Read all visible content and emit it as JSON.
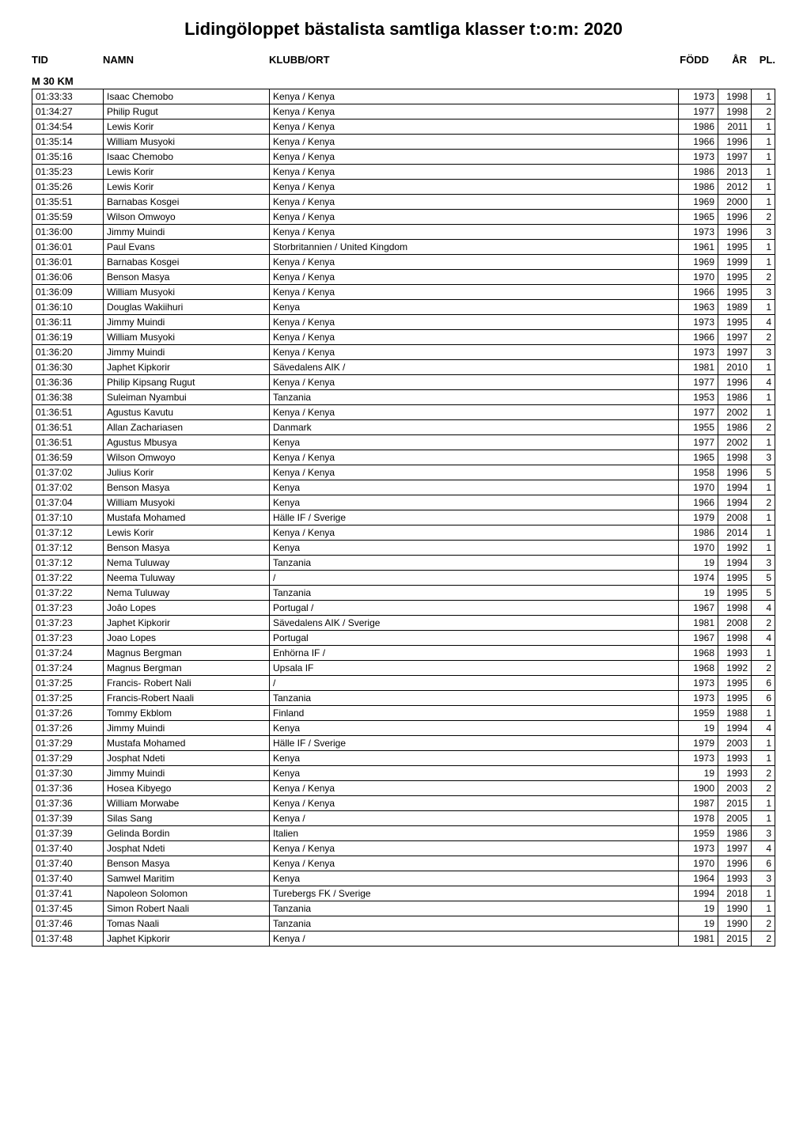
{
  "title": "Lidingöloppet bästalista samtliga klasser t:o:m: 2020",
  "columns": {
    "tid": "TID",
    "namn": "NAMN",
    "klubb": "KLUBB/ORT",
    "fodd": "FÖDD",
    "ar": "ÅR",
    "pl": "PL."
  },
  "section": "M 30 KM",
  "rows": [
    {
      "tid": "01:33:33",
      "namn": "Isaac Chemobo",
      "klubb": "Kenya / Kenya",
      "fodd": "1973",
      "ar": "1998",
      "pl": "1"
    },
    {
      "tid": "01:34:27",
      "namn": "Philip Rugut",
      "klubb": "Kenya / Kenya",
      "fodd": "1977",
      "ar": "1998",
      "pl": "2"
    },
    {
      "tid": "01:34:54",
      "namn": "Lewis Korir",
      "klubb": "Kenya / Kenya",
      "fodd": "1986",
      "ar": "2011",
      "pl": "1"
    },
    {
      "tid": "01:35:14",
      "namn": "William Musyoki",
      "klubb": "Kenya / Kenya",
      "fodd": "1966",
      "ar": "1996",
      "pl": "1"
    },
    {
      "tid": "01:35:16",
      "namn": "Isaac Chemobo",
      "klubb": "Kenya / Kenya",
      "fodd": "1973",
      "ar": "1997",
      "pl": "1"
    },
    {
      "tid": "01:35:23",
      "namn": "Lewis Korir",
      "klubb": "Kenya / Kenya",
      "fodd": "1986",
      "ar": "2013",
      "pl": "1"
    },
    {
      "tid": "01:35:26",
      "namn": "Lewis Korir",
      "klubb": "Kenya / Kenya",
      "fodd": "1986",
      "ar": "2012",
      "pl": "1"
    },
    {
      "tid": "01:35:51",
      "namn": "Barnabas Kosgei",
      "klubb": "Kenya / Kenya",
      "fodd": "1969",
      "ar": "2000",
      "pl": "1"
    },
    {
      "tid": "01:35:59",
      "namn": "Wilson Omwoyo",
      "klubb": "Kenya / Kenya",
      "fodd": "1965",
      "ar": "1996",
      "pl": "2"
    },
    {
      "tid": "01:36:00",
      "namn": "Jimmy Muindi",
      "klubb": "Kenya / Kenya",
      "fodd": "1973",
      "ar": "1996",
      "pl": "3"
    },
    {
      "tid": "01:36:01",
      "namn": "Paul Evans",
      "klubb": "Storbritannien / United Kingdom",
      "fodd": "1961",
      "ar": "1995",
      "pl": "1"
    },
    {
      "tid": "01:36:01",
      "namn": "Barnabas Kosgei",
      "klubb": "Kenya / Kenya",
      "fodd": "1969",
      "ar": "1999",
      "pl": "1"
    },
    {
      "tid": "01:36:06",
      "namn": "Benson Masya",
      "klubb": "Kenya / Kenya",
      "fodd": "1970",
      "ar": "1995",
      "pl": "2"
    },
    {
      "tid": "01:36:09",
      "namn": "William Musyoki",
      "klubb": "Kenya / Kenya",
      "fodd": "1966",
      "ar": "1995",
      "pl": "3"
    },
    {
      "tid": "01:36:10",
      "namn": "Douglas Wakiihuri",
      "klubb": "Kenya",
      "fodd": "1963",
      "ar": "1989",
      "pl": "1"
    },
    {
      "tid": "01:36:11",
      "namn": "Jimmy Muindi",
      "klubb": "Kenya / Kenya",
      "fodd": "1973",
      "ar": "1995",
      "pl": "4"
    },
    {
      "tid": "01:36:19",
      "namn": "William Musyoki",
      "klubb": "Kenya / Kenya",
      "fodd": "1966",
      "ar": "1997",
      "pl": "2"
    },
    {
      "tid": "01:36:20",
      "namn": "Jimmy Muindi",
      "klubb": "Kenya / Kenya",
      "fodd": "1973",
      "ar": "1997",
      "pl": "3"
    },
    {
      "tid": "01:36:30",
      "namn": "Japhet Kipkorir",
      "klubb": "Sävedalens AIK /",
      "fodd": "1981",
      "ar": "2010",
      "pl": "1"
    },
    {
      "tid": "01:36:36",
      "namn": "Philip Kipsang Rugut",
      "klubb": "Kenya / Kenya",
      "fodd": "1977",
      "ar": "1996",
      "pl": "4"
    },
    {
      "tid": "01:36:38",
      "namn": "Suleiman Nyambui",
      "klubb": "Tanzania",
      "fodd": "1953",
      "ar": "1986",
      "pl": "1"
    },
    {
      "tid": "01:36:51",
      "namn": "Agustus Kavutu",
      "klubb": "Kenya / Kenya",
      "fodd": "1977",
      "ar": "2002",
      "pl": "1"
    },
    {
      "tid": "01:36:51",
      "namn": "Allan Zachariasen",
      "klubb": "Danmark",
      "fodd": "1955",
      "ar": "1986",
      "pl": "2"
    },
    {
      "tid": "01:36:51",
      "namn": "Agustus Mbusya",
      "klubb": "Kenya",
      "fodd": "1977",
      "ar": "2002",
      "pl": "1"
    },
    {
      "tid": "01:36:59",
      "namn": "Wilson Omwoyo",
      "klubb": "Kenya / Kenya",
      "fodd": "1965",
      "ar": "1998",
      "pl": "3"
    },
    {
      "tid": "01:37:02",
      "namn": "Julius Korir",
      "klubb": "Kenya / Kenya",
      "fodd": "1958",
      "ar": "1996",
      "pl": "5"
    },
    {
      "tid": "01:37:02",
      "namn": "Benson Masya",
      "klubb": "Kenya",
      "fodd": "1970",
      "ar": "1994",
      "pl": "1"
    },
    {
      "tid": "01:37:04",
      "namn": "William Musyoki",
      "klubb": "Kenya",
      "fodd": "1966",
      "ar": "1994",
      "pl": "2"
    },
    {
      "tid": "01:37:10",
      "namn": "Mustafa Mohamed",
      "klubb": "Hälle IF / Sverige",
      "fodd": "1979",
      "ar": "2008",
      "pl": "1"
    },
    {
      "tid": "01:37:12",
      "namn": "Lewis Korir",
      "klubb": "Kenya / Kenya",
      "fodd": "1986",
      "ar": "2014",
      "pl": "1"
    },
    {
      "tid": "01:37:12",
      "namn": "Benson Masya",
      "klubb": "Kenya",
      "fodd": "1970",
      "ar": "1992",
      "pl": "1"
    },
    {
      "tid": "01:37:12",
      "namn": "Nema Tuluway",
      "klubb": "Tanzania",
      "fodd": "19",
      "ar": "1994",
      "pl": "3"
    },
    {
      "tid": "01:37:22",
      "namn": "Neema Tuluway",
      "klubb": "/",
      "fodd": "1974",
      "ar": "1995",
      "pl": "5"
    },
    {
      "tid": "01:37:22",
      "namn": "Nema Tuluway",
      "klubb": "Tanzania",
      "fodd": "19",
      "ar": "1995",
      "pl": "5"
    },
    {
      "tid": "01:37:23",
      "namn": "Joâo Lopes",
      "klubb": "Portugal /",
      "fodd": "1967",
      "ar": "1998",
      "pl": "4"
    },
    {
      "tid": "01:37:23",
      "namn": "Japhet Kipkorir",
      "klubb": "Sävedalens AIK / Sverige",
      "fodd": "1981",
      "ar": "2008",
      "pl": "2"
    },
    {
      "tid": "01:37:23",
      "namn": "Joao Lopes",
      "klubb": "Portugal",
      "fodd": "1967",
      "ar": "1998",
      "pl": "4"
    },
    {
      "tid": "01:37:24",
      "namn": "Magnus  Bergman",
      "klubb": "Enhörna IF /",
      "fodd": "1968",
      "ar": "1993",
      "pl": "1"
    },
    {
      "tid": "01:37:24",
      "namn": "Magnus Bergman",
      "klubb": "Upsala IF",
      "fodd": "1968",
      "ar": "1992",
      "pl": "2"
    },
    {
      "tid": "01:37:25",
      "namn": "Francis- Robert Nali",
      "klubb": "/",
      "fodd": "1973",
      "ar": "1995",
      "pl": "6"
    },
    {
      "tid": "01:37:25",
      "namn": "Francis-Robert Naali",
      "klubb": "Tanzania",
      "fodd": "1973",
      "ar": "1995",
      "pl": "6"
    },
    {
      "tid": "01:37:26",
      "namn": "Tommy Ekblom",
      "klubb": "Finland",
      "fodd": "1959",
      "ar": "1988",
      "pl": "1"
    },
    {
      "tid": "01:37:26",
      "namn": "Jimmy Muindi",
      "klubb": "Kenya",
      "fodd": "19",
      "ar": "1994",
      "pl": "4"
    },
    {
      "tid": "01:37:29",
      "namn": "Mustafa Mohamed",
      "klubb": "Hälle IF / Sverige",
      "fodd": "1979",
      "ar": "2003",
      "pl": "1"
    },
    {
      "tid": "01:37:29",
      "namn": "Josphat Ndeti",
      "klubb": "Kenya",
      "fodd": "1973",
      "ar": "1993",
      "pl": "1"
    },
    {
      "tid": "01:37:30",
      "namn": "Jimmy Muindi",
      "klubb": "Kenya",
      "fodd": "19",
      "ar": "1993",
      "pl": "2"
    },
    {
      "tid": "01:37:36",
      "namn": "Hosea Kibyego",
      "klubb": "Kenya / Kenya",
      "fodd": "1900",
      "ar": "2003",
      "pl": "2"
    },
    {
      "tid": "01:37:36",
      "namn": "William Morwabe",
      "klubb": "Kenya / Kenya",
      "fodd": "1987",
      "ar": "2015",
      "pl": "1"
    },
    {
      "tid": "01:37:39",
      "namn": "Silas Sang",
      "klubb": "Kenya /",
      "fodd": "1978",
      "ar": "2005",
      "pl": "1"
    },
    {
      "tid": "01:37:39",
      "namn": "Gelinda Bordin",
      "klubb": "Italien",
      "fodd": "1959",
      "ar": "1986",
      "pl": "3"
    },
    {
      "tid": "01:37:40",
      "namn": "Josphat Ndeti",
      "klubb": "Kenya / Kenya",
      "fodd": "1973",
      "ar": "1997",
      "pl": "4"
    },
    {
      "tid": "01:37:40",
      "namn": "Benson Masya",
      "klubb": "Kenya / Kenya",
      "fodd": "1970",
      "ar": "1996",
      "pl": "6"
    },
    {
      "tid": "01:37:40",
      "namn": "Samwel Maritim",
      "klubb": "Kenya",
      "fodd": "1964",
      "ar": "1993",
      "pl": "3"
    },
    {
      "tid": "01:37:41",
      "namn": "Napoleon Solomon",
      "klubb": "Turebergs FK / Sverige",
      "fodd": "1994",
      "ar": "2018",
      "pl": "1"
    },
    {
      "tid": "01:37:45",
      "namn": "Simon Robert Naali",
      "klubb": "Tanzania",
      "fodd": "19",
      "ar": "1990",
      "pl": "1"
    },
    {
      "tid": "01:37:46",
      "namn": "Tomas Naali",
      "klubb": "Tanzania",
      "fodd": "19",
      "ar": "1990",
      "pl": "2"
    },
    {
      "tid": "01:37:48",
      "namn": "Japhet Kipkorir",
      "klubb": "Kenya /",
      "fodd": "1981",
      "ar": "2015",
      "pl": "2"
    }
  ]
}
